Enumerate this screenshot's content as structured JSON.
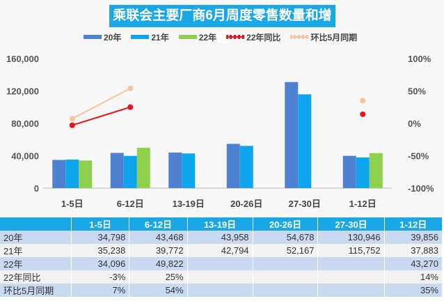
{
  "chart_data": {
    "type": "bar",
    "title": "乘联会主要厂商6月周度零售数量和增速",
    "categories": [
      "1-5日",
      "6-12日",
      "13-19日",
      "20-26日",
      "27-30日",
      "1-12日"
    ],
    "series": [
      {
        "name": "20年",
        "kind": "bar",
        "axis": "left",
        "color": "#4f81d3",
        "values": [
          34798,
          43468,
          43958,
          54678,
          130946,
          39856
        ]
      },
      {
        "name": "21年",
        "kind": "bar",
        "axis": "left",
        "color": "#0ea5ee",
        "values": [
          35238,
          39772,
          42794,
          52167,
          115752,
          37883
        ]
      },
      {
        "name": "22年",
        "kind": "bar",
        "axis": "left",
        "color": "#8fd14f",
        "values": [
          34096,
          49822,
          null,
          null,
          null,
          43270
        ]
      },
      {
        "name": "22年同比",
        "kind": "line",
        "axis": "right",
        "color": "#e8141b",
        "values": [
          -3,
          25,
          null,
          null,
          null,
          14
        ]
      },
      {
        "name": "环比5月同期",
        "kind": "line",
        "axis": "right",
        "color": "#f7c49b",
        "values": [
          7,
          54,
          null,
          null,
          null,
          35
        ]
      }
    ],
    "left_axis": {
      "ylim": [
        0,
        160000
      ],
      "ticks": [
        "0",
        "40,000",
        "80,000",
        "120,000",
        "160,000"
      ]
    },
    "right_axis": {
      "ylim": [
        -100,
        100
      ],
      "ticks": [
        "-100%",
        "-50%",
        "0%",
        "50%",
        "100%"
      ]
    },
    "legend": "top",
    "grid": false
  },
  "table": {
    "header": [
      "",
      "1-5日",
      "6-12日",
      "13-19日",
      "20-26日",
      "27-30日",
      "1-12日"
    ],
    "rows": [
      [
        "20年",
        "34,798",
        "43,468",
        "43,958",
        "54,678",
        "130,946",
        "39,856"
      ],
      [
        "21年",
        "35,238",
        "39,772",
        "42,794",
        "52,167",
        "115,752",
        "37,883"
      ],
      [
        "22年",
        "34,096",
        "49,822",
        "",
        "",
        "",
        "43,270"
      ],
      [
        "22年同比",
        "-3%",
        "25%",
        "",
        "",
        "",
        "14%"
      ],
      [
        "环比5月同期",
        "7%",
        "54%",
        "",
        "",
        "",
        "35%"
      ]
    ]
  }
}
